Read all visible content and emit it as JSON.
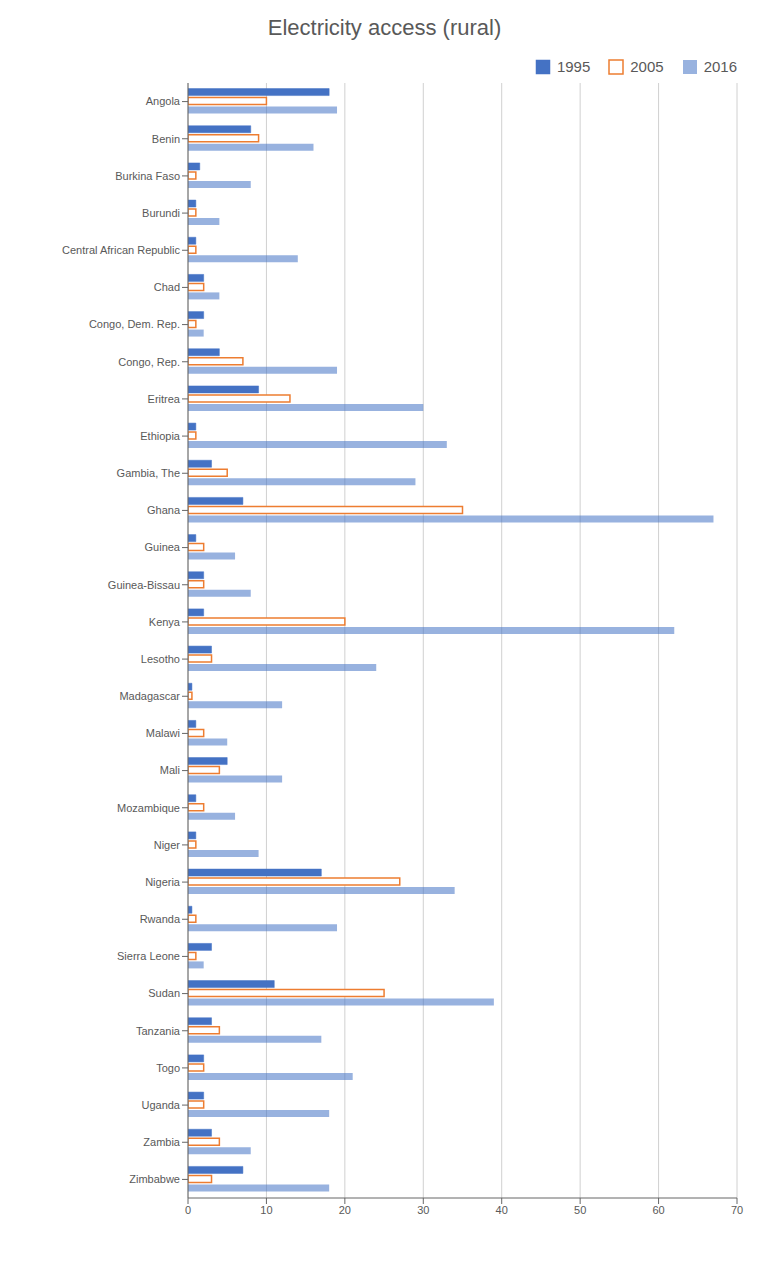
{
  "chart_data": {
    "type": "bar",
    "title": "Electricity access (rural)",
    "orientation": "horizontal",
    "categories": [
      "Angola",
      "Benin",
      "Burkina Faso",
      "Burundi",
      "Central African Republic",
      "Chad",
      "Congo, Dem. Rep.",
      "Congo, Rep.",
      "Eritrea",
      "Ethiopia",
      "Gambia, The",
      "Ghana",
      "Guinea",
      "Guinea-Bissau",
      "Kenya",
      "Lesotho",
      "Madagascar",
      "Malawi",
      "Mali",
      "Mozambique",
      "Niger",
      "Nigeria",
      "Rwanda",
      "Sierra Leone",
      "Sudan",
      "Tanzania",
      "Togo",
      "Uganda",
      "Zambia",
      "Zimbabwe"
    ],
    "series": [
      {
        "name": "1995",
        "color": "#4472C4",
        "values": [
          18,
          8,
          1.5,
          1,
          1,
          2,
          2,
          4,
          9,
          1,
          3,
          7,
          1,
          2,
          2,
          3,
          0.5,
          1,
          5,
          1,
          1,
          17,
          0.5,
          3,
          11,
          3,
          2,
          2,
          3,
          7
        ]
      },
      {
        "name": "2005",
        "color": "#ED7D31",
        "values": [
          10,
          9,
          1,
          1,
          1,
          2,
          1,
          7,
          13,
          1,
          5,
          35,
          2,
          2,
          20,
          3,
          0.5,
          2,
          4,
          2,
          1,
          27,
          1,
          1,
          25,
          4,
          2,
          2,
          4,
          3
        ]
      },
      {
        "name": "2016",
        "color": "#4472C4",
        "values": [
          19,
          16,
          8,
          4,
          14,
          4,
          2,
          19,
          30,
          33,
          29,
          67,
          6,
          8,
          62,
          24,
          12,
          5,
          12,
          6,
          9,
          34,
          19,
          2,
          39,
          17,
          21,
          18,
          8,
          18
        ]
      }
    ],
    "xlim": [
      0,
      70
    ],
    "xticks": [
      0,
      10,
      20,
      30,
      40,
      50,
      60,
      70
    ],
    "grid": true,
    "legend": "upper right"
  }
}
